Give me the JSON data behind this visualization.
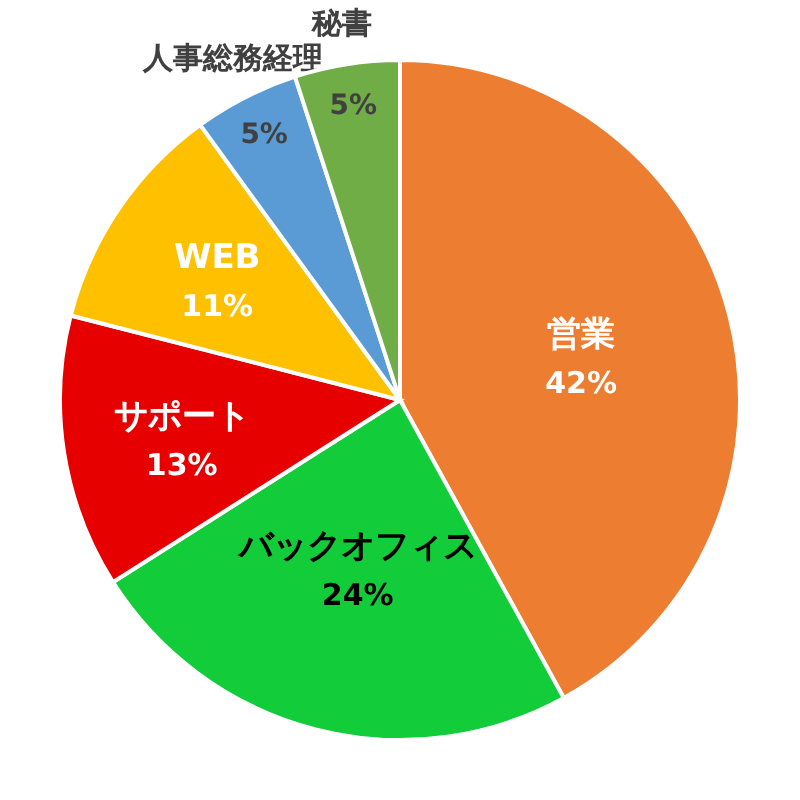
{
  "chart_data": {
    "type": "pie",
    "categories": [
      "営業",
      "バックオフィス",
      "サポート",
      "WEB",
      "人事総務経理",
      "秘書"
    ],
    "values": [
      42,
      24,
      13,
      11,
      5,
      5
    ],
    "value_labels": [
      "42%",
      "24%",
      "13%",
      "11%",
      "5%",
      "5%"
    ],
    "colors": [
      "#ed7d31",
      "#13cc3a",
      "#e60000",
      "#ffc000",
      "#5b9bd5",
      "#70ad47"
    ]
  }
}
